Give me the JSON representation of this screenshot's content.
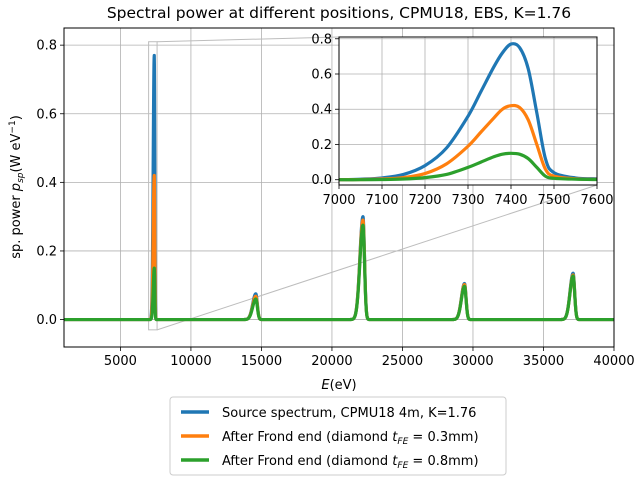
{
  "chart_data": [
    {
      "type": "line",
      "title": "Spectral power at different positions, CPMU18, EBS, K=1.76",
      "xlabel": "E(eV)",
      "ylabel": "sp. power p_sp(W eV^-1)",
      "xlim": [
        1000,
        40000
      ],
      "ylim": [
        -0.08,
        0.85
      ],
      "xticks": [
        5000,
        10000,
        15000,
        20000,
        25000,
        30000,
        35000,
        40000
      ],
      "yticks": [
        0.0,
        0.2,
        0.4,
        0.6,
        0.8
      ],
      "grid": true,
      "legend_position": "below",
      "series": [
        {
          "name": "Source spectrum, CPMU18 4m, K=1.76",
          "color": "#1f77b4",
          "peaks": [
            [
              7400,
              0.77
            ],
            [
              14600,
              0.075
            ],
            [
              22200,
              0.3
            ],
            [
              29400,
              0.105
            ],
            [
              37100,
              0.135
            ]
          ]
        },
        {
          "name": "After Frond end (diamond t_FE = 0.3mm)",
          "color": "#ff7f0e",
          "peaks": [
            [
              7400,
              0.42
            ],
            [
              14600,
              0.068
            ],
            [
              22200,
              0.29
            ],
            [
              29400,
              0.102
            ],
            [
              37100,
              0.13
            ]
          ]
        },
        {
          "name": "After Frond end (diamond t_FE = 0.8mm)",
          "color": "#2ca02c",
          "peaks": [
            [
              7400,
              0.15
            ],
            [
              14600,
              0.06
            ],
            [
              22200,
              0.275
            ],
            [
              29400,
              0.097
            ],
            [
              37100,
              0.127
            ]
          ]
        }
      ]
    },
    {
      "type": "line",
      "title": "",
      "xlim": [
        7000,
        7600
      ],
      "ylim": [
        -0.03,
        0.81
      ],
      "xticks": [
        7000,
        7100,
        7200,
        7300,
        7400,
        7500,
        7600
      ],
      "yticks": [
        0.0,
        0.2,
        0.4,
        0.6,
        0.8
      ],
      "grid": true,
      "x": [
        7000,
        7050,
        7100,
        7150,
        7200,
        7250,
        7300,
        7330,
        7360,
        7380,
        7400,
        7420,
        7440,
        7460,
        7480,
        7500,
        7550,
        7600
      ],
      "series": [
        {
          "name": "Source spectrum, CPMU18 4m, K=1.76",
          "color": "#1f77b4",
          "values": [
            0.0,
            0.003,
            0.01,
            0.03,
            0.08,
            0.18,
            0.36,
            0.5,
            0.64,
            0.72,
            0.77,
            0.75,
            0.63,
            0.38,
            0.12,
            0.04,
            0.01,
            0.005
          ]
        },
        {
          "name": "After Frond end (diamond t_FE = 0.3mm)",
          "color": "#ff7f0e",
          "values": [
            0.0,
            0.001,
            0.004,
            0.012,
            0.035,
            0.09,
            0.19,
            0.27,
            0.35,
            0.4,
            0.42,
            0.41,
            0.34,
            0.2,
            0.06,
            0.02,
            0.005,
            0.002
          ]
        },
        {
          "name": "After Frond end (diamond t_FE = 0.8mm)",
          "color": "#2ca02c",
          "values": [
            0.0,
            0.0,
            0.001,
            0.004,
            0.012,
            0.03,
            0.07,
            0.1,
            0.13,
            0.145,
            0.15,
            0.145,
            0.12,
            0.07,
            0.02,
            0.008,
            0.003,
            0.001
          ]
        }
      ]
    }
  ],
  "labels": {
    "title": "Spectral power at different positions, CPMU18, EBS, K=1.76",
    "xlabel_main": "E",
    "xlabel_unit": "(eV)",
    "ylabel_main": "sp. power ",
    "ylabel_sym": "p",
    "ylabel_sub": "sp",
    "ylabel_unit": "(W eV",
    "ylabel_exp": "−1",
    "ylabel_close": ")"
  },
  "legend": [
    {
      "text": "Source spectrum, CPMU18 4m, K=1.76"
    },
    {
      "text": "After Frond end (diamond ",
      "sym": "t",
      "sub": "FE",
      "rest": " = 0.3mm)"
    },
    {
      "text": "After Frond end (diamond ",
      "sym": "t",
      "sub": "FE",
      "rest": " = 0.8mm)"
    }
  ]
}
